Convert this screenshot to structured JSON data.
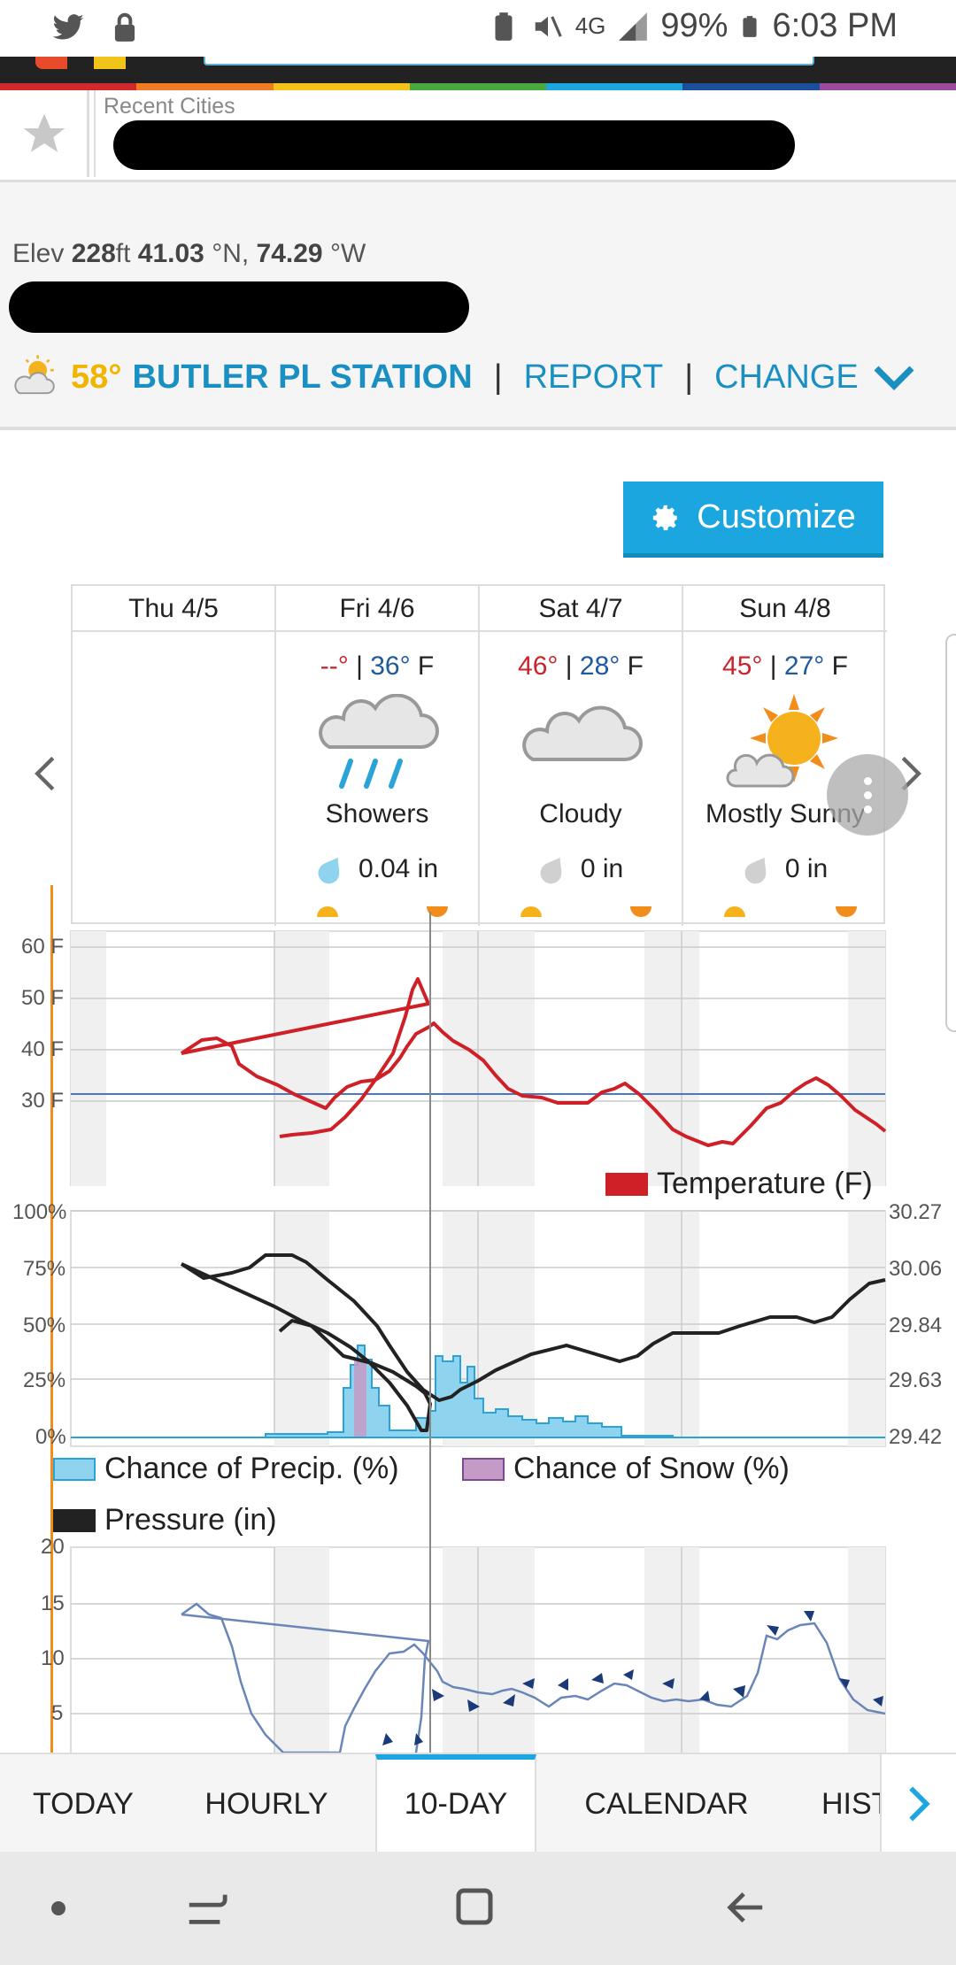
{
  "status_bar": {
    "battery": "99%",
    "time": "6:03 PM",
    "network": "4G"
  },
  "recent_cities": {
    "label": "Recent Cities"
  },
  "station": {
    "elev_label": "Elev",
    "elev_value": "228",
    "elev_unit": "ft",
    "lat": "41.03",
    "lat_unit": "°N,",
    "lon": "74.29",
    "lon_unit": "°W",
    "temp": "58°",
    "name": "BUTLER PL STATION",
    "sep1": "|",
    "report": "REPORT",
    "sep2": "|",
    "change": "CHANGE"
  },
  "customize": {
    "label": "Customize"
  },
  "forecast": {
    "days": [
      {
        "day": "Thu 4/5",
        "hi": "",
        "lo": "",
        "unit": "",
        "cond": "",
        "precip": ""
      },
      {
        "day": "Fri 4/6",
        "hi": "--°",
        "lo": "36°",
        "unit": "F",
        "cond": "Showers",
        "precip": "0.04 in"
      },
      {
        "day": "Sat 4/7",
        "hi": "46°",
        "lo": "28°",
        "unit": "F",
        "cond": "Cloudy",
        "precip": "0 in"
      },
      {
        "day": "Sun 4/8",
        "hi": "45°",
        "lo": "27°",
        "unit": "F",
        "cond": "Mostly Sunny",
        "precip": "0 in"
      }
    ],
    "bar": "|"
  },
  "charts": {
    "temp_axis": [
      "60 F",
      "50 F",
      "40 F",
      "30 F"
    ],
    "temp_legend": "Temperature (F)",
    "pct_axis": [
      "100%",
      "75%",
      "50%",
      "25%",
      "0%"
    ],
    "pressure_axis": [
      "30.27",
      "30.06",
      "29.84",
      "29.63",
      "29.42"
    ],
    "legend_precip": "Chance of Precip. (%)",
    "legend_snow": "Chance of Snow (%)",
    "legend_pressure": "Pressure (in)",
    "wind_axis": [
      "20",
      "15",
      "10",
      "5"
    ]
  },
  "chart_data": [
    {
      "type": "line",
      "ylim": [
        25,
        62
      ],
      "yticks": [
        "60 F",
        "50 F",
        "40 F",
        "30 F"
      ],
      "series": [
        {
          "name": "Temperature (F)",
          "color": "#cf2027"
        }
      ]
    },
    {
      "type": "area",
      "yticks_left": [
        "100%",
        "75%",
        "50%",
        "25%",
        "0%"
      ],
      "yticks_right": [
        "30.27",
        "30.06",
        "29.84",
        "29.63",
        "29.42"
      ],
      "series": [
        {
          "name": "Chance of Precip. (%)",
          "color": "#8fd3ef"
        },
        {
          "name": "Chance of Snow (%)",
          "color": "#c49ac6"
        },
        {
          "name": "Pressure (in)",
          "color": "#222222"
        }
      ]
    },
    {
      "type": "line",
      "yticks": [
        "20",
        "15",
        "10",
        "5"
      ]
    }
  ],
  "tabs": {
    "items": [
      "TODAY",
      "HOURLY",
      "10-DAY",
      "CALENDAR",
      "HIST"
    ],
    "active": "10-DAY"
  },
  "colors": {
    "accent": "#1ba6df",
    "link": "#1a8fc2",
    "temp_line": "#cf2027",
    "station_temp": "#f1b400"
  }
}
